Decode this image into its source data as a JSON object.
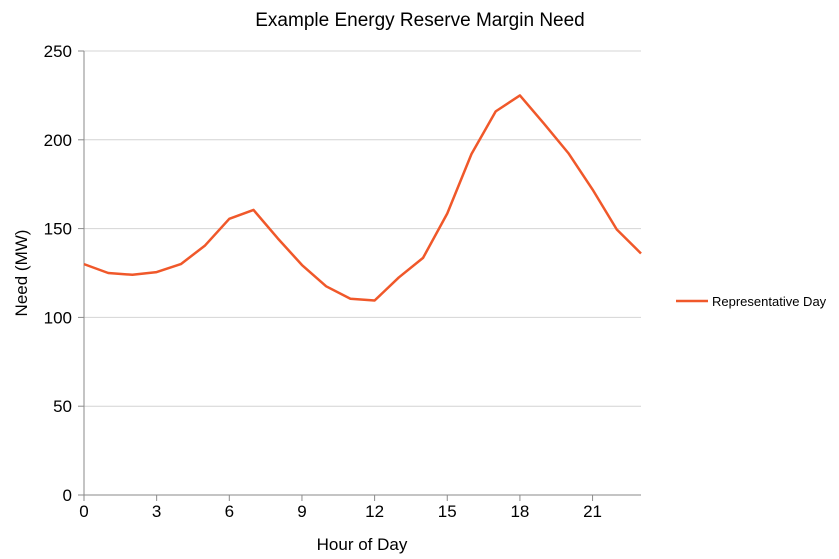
{
  "chart_data": {
    "type": "line",
    "title": "Example Energy Reserve Margin Need",
    "xlabel": "Hour of Day",
    "ylabel": "Need (MW)",
    "xlim": [
      0,
      23
    ],
    "ylim": [
      0,
      250
    ],
    "x_ticks": [
      0,
      3,
      6,
      9,
      12,
      15,
      18,
      21
    ],
    "y_ticks": [
      0,
      50,
      100,
      150,
      200,
      250
    ],
    "grid": "horizontal",
    "legend_position": "right",
    "x": [
      0,
      1,
      2,
      3,
      4,
      5,
      6,
      7,
      8,
      9,
      10,
      11,
      12,
      13,
      14,
      15,
      16,
      17,
      18,
      19,
      20,
      21,
      22,
      23
    ],
    "series": [
      {
        "name": "Representative Day",
        "color": "#f0582a",
        "values": [
          130,
          125,
          124,
          125.5,
          130,
          140.5,
          155.5,
          160.5,
          144.5,
          129.5,
          117.5,
          110.5,
          109.5,
          122.5,
          133.5,
          158.5,
          192,
          216,
          225,
          209,
          192.5,
          172,
          149.5,
          136
        ]
      }
    ]
  }
}
